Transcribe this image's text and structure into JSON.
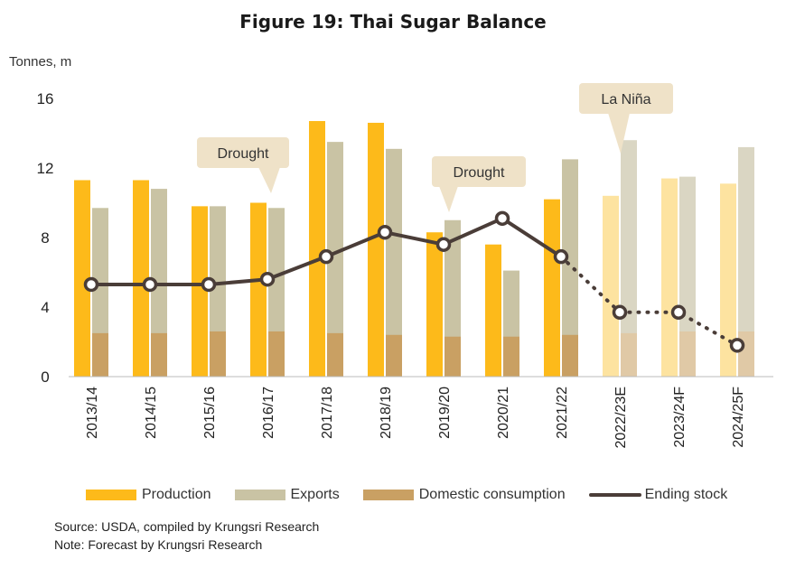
{
  "title": "Figure 19: Thai Sugar Balance",
  "colors": {
    "production": "#FDBA1A",
    "production_forecast": "#FDE3A0",
    "exports": "#C9C3A4",
    "exports_forecast": "#DAD6C3",
    "domestic": "#C9A063",
    "domestic_forecast": "#E0C9A6",
    "ending_stock": "#4A3D38",
    "callout": "#EFE2C8"
  },
  "chart_data": {
    "type": "bar",
    "ylabel": "Tonnes, m",
    "ylim": [
      0,
      16
    ],
    "yticks": [
      0,
      4,
      8,
      12,
      16
    ],
    "categories": [
      "2013/14",
      "2014/15",
      "2015/16",
      "2016/17",
      "2017/18",
      "2018/19",
      "2019/20",
      "2020/21",
      "2021/22",
      "2022/23E",
      "2023/24F",
      "2024/25F"
    ],
    "forecast_start_index": 9,
    "series": [
      {
        "name": "Production",
        "type": "bar",
        "values": [
          11.3,
          11.3,
          9.8,
          10.0,
          14.7,
          14.6,
          8.3,
          7.6,
          10.2,
          10.4,
          11.4,
          11.1
        ]
      },
      {
        "name": "Exports",
        "type": "bar",
        "values": [
          9.7,
          10.8,
          9.8,
          9.7,
          13.5,
          13.1,
          9.0,
          6.1,
          12.5,
          13.6,
          11.5,
          13.2
        ]
      },
      {
        "name": "Domestic consumption",
        "type": "bar",
        "values": [
          2.5,
          2.5,
          2.6,
          2.6,
          2.5,
          2.4,
          2.3,
          2.3,
          2.4,
          2.5,
          2.6,
          2.6
        ]
      },
      {
        "name": "Ending stock",
        "type": "line",
        "values": [
          5.3,
          5.3,
          5.3,
          5.6,
          6.9,
          8.3,
          7.6,
          9.1,
          6.9,
          3.7,
          3.7,
          1.8
        ]
      }
    ],
    "annotations": [
      {
        "text": "Drought",
        "category": "2016/17"
      },
      {
        "text": "Drought",
        "category": "2019/20"
      },
      {
        "text": "La Niña",
        "category": "2022/23E"
      }
    ]
  },
  "notes": {
    "source": "Source: USDA, compiled by Krungsri Research",
    "note": "Note: Forecast by Krungsri Research"
  }
}
